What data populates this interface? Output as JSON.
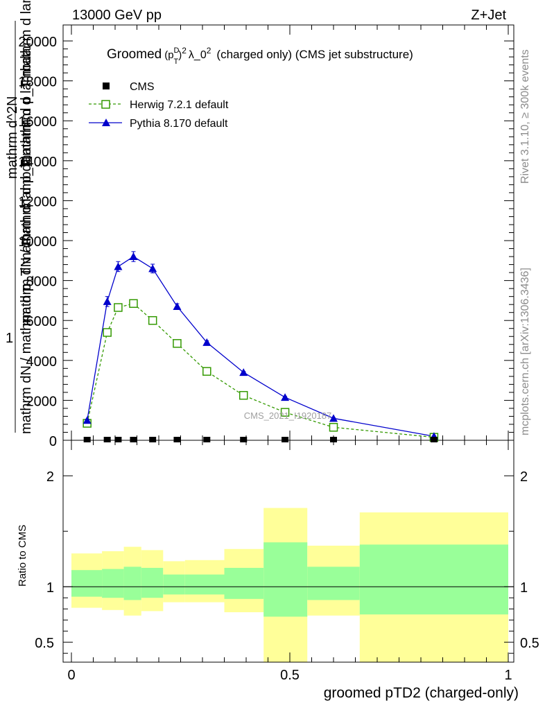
{
  "header": {
    "energy": "13000 GeV pp",
    "process": "Z+Jet"
  },
  "side_labels": {
    "rivet": "Rivet 3.1.10, ≥ 300k events",
    "mcplots": "mcplots.cern.ch [arXiv:1306.3436]"
  },
  "watermark": "CMS_2021_I1920187",
  "colors": {
    "mc_band": "#ffff99",
    "stat_band": "#99ff99",
    "herwig": "#339900",
    "pythia": "#0000cc",
    "data": "#000000",
    "ref_line": "#000000"
  },
  "chart_data": [
    {
      "type": "scatter",
      "title": "Groomed (p_T^D)^2 λ_0^2 (charged only) (CMS jet substructure)",
      "title_parts": {
        "a": "Groomed",
        "b": "(p",
        "c": "D",
        "d": "T",
        "e": ")",
        "f": "2",
        "g": "λ_0",
        "h": "2",
        "i": "(charged only) (CMS jet substructure)"
      },
      "ylabel_top": "1",
      "ylabel_1": "mathrm dN / mathrm d p_T mathrm d lambda",
      "ylabel_2": "mathrm d^2N",
      "ylabel_3": "mathrm dN / mathrm d p_T mathrm d lambda",
      "ylabel_4": "mathrm d p_T mathrm d lambda",
      "ylim": [
        0,
        20800
      ],
      "yticks": [
        0,
        2000,
        4000,
        6000,
        8000,
        10000,
        12000,
        14000,
        16000,
        18000,
        20000
      ],
      "ytick_labels": [
        "0",
        "2000",
        "4000",
        "6000",
        "8000",
        "10000",
        "12000",
        "14000",
        "16000",
        "18000",
        "20000"
      ],
      "xlim": [
        0,
        1
      ],
      "legend": [
        "CMS",
        "Herwig 7.2.1 default",
        "Pythia 8.170 default"
      ],
      "legend_position": "top-left",
      "series": [
        {
          "name": "CMS",
          "marker": "square-filled",
          "x": [
            0.036,
            0.082,
            0.107,
            0.142,
            0.186,
            0.242,
            0.31,
            0.394,
            0.489,
            0.6,
            0.83
          ],
          "y": [
            0,
            0,
            0,
            0,
            0,
            0,
            0,
            0,
            0,
            0,
            0
          ]
        },
        {
          "name": "Herwig 7.2.1 default",
          "marker": "square-open",
          "linestyle": "dashed",
          "x": [
            0.036,
            0.082,
            0.107,
            0.142,
            0.186,
            0.242,
            0.31,
            0.394,
            0.489,
            0.6,
            0.83
          ],
          "y": [
            850,
            5400,
            6650,
            6850,
            6000,
            4850,
            3450,
            2250,
            1400,
            650,
            150
          ]
        },
        {
          "name": "Pythia 8.170 default",
          "marker": "triangle-filled",
          "linestyle": "solid",
          "x": [
            0.036,
            0.082,
            0.107,
            0.142,
            0.186,
            0.242,
            0.31,
            0.394,
            0.489,
            0.6,
            0.83
          ],
          "y": [
            1000,
            6950,
            8700,
            9200,
            8600,
            6700,
            4900,
            3400,
            2150,
            1100,
            200
          ],
          "yerr": [
            60,
            250,
            250,
            250,
            220,
            140,
            80,
            50,
            40,
            30,
            20
          ]
        }
      ]
    },
    {
      "type": "bar",
      "ylabel": "Ratio to CMS",
      "ylim": [
        0.32,
        2.32
      ],
      "yticks": [
        0.5,
        1,
        2
      ],
      "ytick_labels": [
        "0.5",
        "1",
        "2"
      ],
      "xticks": [
        0,
        0.5,
        1
      ],
      "xtick_labels": [
        "0",
        "0.5",
        "1"
      ],
      "xlabel": "groomed pTD2 (charged-only)",
      "bins": [
        {
          "lo": 0.0,
          "hi": 0.07,
          "mc_lo": 0.81,
          "mc_hi": 1.3,
          "stat_lo": 0.91,
          "stat_hi": 1.15
        },
        {
          "lo": 0.07,
          "hi": 0.12,
          "mc_lo": 0.79,
          "mc_hi": 1.32,
          "stat_lo": 0.9,
          "stat_hi": 1.16
        },
        {
          "lo": 0.12,
          "hi": 0.16,
          "mc_lo": 0.74,
          "mc_hi": 1.36,
          "stat_lo": 0.88,
          "stat_hi": 1.18
        },
        {
          "lo": 0.16,
          "hi": 0.21,
          "mc_lo": 0.78,
          "mc_hi": 1.33,
          "stat_lo": 0.9,
          "stat_hi": 1.17
        },
        {
          "lo": 0.21,
          "hi": 0.26,
          "mc_lo": 0.86,
          "mc_hi": 1.23,
          "stat_lo": 0.93,
          "stat_hi": 1.11
        },
        {
          "lo": 0.26,
          "hi": 0.35,
          "mc_lo": 0.86,
          "mc_hi": 1.24,
          "stat_lo": 0.93,
          "stat_hi": 1.11
        },
        {
          "lo": 0.35,
          "hi": 0.44,
          "mc_lo": 0.77,
          "mc_hi": 1.34,
          "stat_lo": 0.89,
          "stat_hi": 1.17
        },
        {
          "lo": 0.44,
          "hi": 0.54,
          "mc_lo": 0.32,
          "mc_hi": 1.71,
          "stat_lo": 0.73,
          "stat_hi": 1.4
        },
        {
          "lo": 0.54,
          "hi": 0.66,
          "mc_lo": 0.74,
          "mc_hi": 1.37,
          "stat_lo": 0.88,
          "stat_hi": 1.18
        },
        {
          "lo": 0.66,
          "hi": 1.0,
          "mc_lo": 0.32,
          "mc_hi": 1.67,
          "stat_lo": 0.75,
          "stat_hi": 1.38
        }
      ]
    }
  ]
}
